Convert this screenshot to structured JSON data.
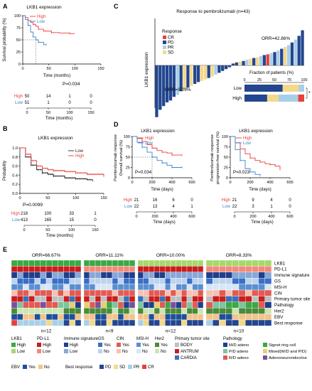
{
  "colors": {
    "high": "#e8403b",
    "low": "#3a86c8",
    "black": "#222222",
    "cr": "#e8403b",
    "pd": "#23468f",
    "pr": "#a9cfe8",
    "sd": "#f4d98a",
    "green_dark": "#3aa843",
    "green_light": "#a6d86a",
    "pdl1_high": "#c81e1e",
    "pdl1_low": "#f08a7a",
    "imm_high": "#1f3f8c",
    "imm_low": "#86a7d8",
    "yes_blue": "#3a6fc8",
    "no_blue": "#bcd3ef",
    "cin_yes": "#e25b53",
    "cin_no": "#f6c1b2",
    "msi_yes": "#5a8fcf",
    "msi_no": "#d8e6f5",
    "her2_yes": "#4a8a3a",
    "her2_no": "#c9e6b3",
    "ebv_yes": "#1e4f9a",
    "ebv_no": "#f3c38a",
    "body": "#bfbfbf",
    "antrum": "#c81e1e",
    "cardia": "#3d6fb6",
    "md": "#1f3f8c",
    "pd_adeno": "#7ec4a0",
    "rd": "#e25b53",
    "signet": "#3aa843",
    "mixed": "#e6d06e",
    "adenoneuro": "#7b4fa0"
  },
  "panels": {
    "A": {
      "letter": "A",
      "title": "LKB1 expression",
      "legend": [
        "High",
        "Low"
      ],
      "ylabel": "Survival probability (%)",
      "xlabel": "Time (months)",
      "xticks": [
        "0",
        "50",
        "100",
        "150"
      ],
      "yticks": [
        "0",
        "25",
        "50",
        "75",
        "100"
      ],
      "pvalue": "P=0.034",
      "risk_rows": [
        {
          "label": "High",
          "values": [
            "50",
            "14",
            "1",
            "0"
          ]
        },
        {
          "label": "Low",
          "values": [
            "51",
            "1",
            "0",
            "0"
          ]
        }
      ],
      "risk_xlabel": "Time (months)",
      "risk_xticks": [
        "0",
        "50",
        "100",
        "150"
      ]
    },
    "B": {
      "letter": "B",
      "title": "LKB1 expression",
      "legend": [
        "Low",
        "High"
      ],
      "ylabel": "Probability",
      "xlabel": "Time (months)",
      "xticks": [
        "0",
        "50",
        "100",
        "150"
      ],
      "yticks": [
        "0.0",
        "0.2",
        "0.4",
        "0.6",
        "0.8",
        "1.0"
      ],
      "pvalue": "P=0.0099",
      "risk_rows": [
        {
          "label": "High",
          "values": [
            "218",
            "100",
            "33",
            "1"
          ]
        },
        {
          "label": "Low",
          "values": [
            "413",
            "165",
            "15",
            "0"
          ]
        }
      ],
      "risk_xlabel": "Time (months)",
      "risk_xticks": [
        "0",
        "50",
        "100",
        "150"
      ]
    },
    "C": {
      "letter": "C",
      "title": "Response to pembrolizumab (n=43)",
      "ylabel": "LKB1 expression",
      "legend_title": "Response",
      "legend": [
        "CR",
        "PD",
        "PR",
        "SD"
      ],
      "orr_high": "ORR=42.86%",
      "orr_low": "ORR=9.09%",
      "fraction_title": "Fraction of patients (%)",
      "fraction_xticks": [
        "0",
        "25",
        "50",
        "75",
        "100"
      ],
      "fraction_rows": [
        "Low",
        "High"
      ],
      "star": "*"
    },
    "D": {
      "letter": "D",
      "left": {
        "title": "LKB1 expression",
        "legend": [
          "High",
          "Low"
        ],
        "ylabel1": "Pembrolizumab response",
        "ylabel2": "Overall survival (%)",
        "xlabel": "Time (days)",
        "xticks": [
          "0",
          "200",
          "400",
          "600"
        ],
        "yticks": [
          "0",
          "25",
          "50",
          "75",
          "100"
        ],
        "pvalue": "P=0.034",
        "risk_rows": [
          {
            "label": "High",
            "values": [
              "21",
              "16",
              "6",
              "0"
            ]
          },
          {
            "label": "Low",
            "values": [
              "22",
              "13",
              "4",
              "1"
            ]
          }
        ],
        "risk_xlabel": "Time (days)",
        "risk_xticks": [
          "0",
          "200",
          "400",
          "600"
        ]
      },
      "right": {
        "title": "LKB1 expression",
        "legend": [
          "High",
          "Low"
        ],
        "ylabel1": "Pembrolizumab response",
        "ylabel2": "progression-free survival (%)",
        "xlabel": "Time (days)",
        "xticks": [
          "0",
          "200",
          "400",
          "600"
        ],
        "yticks": [
          "0",
          "25",
          "50",
          "75",
          "100"
        ],
        "pvalue": "P=0.023",
        "risk_rows": [
          {
            "label": "High",
            "values": [
              "21",
              "9",
              "4",
              "0"
            ]
          },
          {
            "label": "Low",
            "values": [
              "22",
              "3",
              "1",
              "0"
            ]
          }
        ],
        "risk_xlabel": "Time (days)",
        "risk_xticks": [
          "0",
          "200",
          "400",
          "600"
        ]
      }
    },
    "E": {
      "letter": "E",
      "orr_labels": [
        "ORR=66.67%",
        "ORR=11.11%",
        "ORR=10.00%",
        "ORR=8.33%"
      ],
      "n_labels": [
        "n=12",
        "n=9",
        "n=12",
        "n=10"
      ],
      "row_labels": [
        "LKB1",
        "PD-L1",
        "Immune signature",
        "GS",
        "MSI-H",
        "CIN",
        "Primary tumor site",
        "Pathology",
        "Her2",
        "EBV",
        "Best response"
      ],
      "legend_groups": [
        {
          "title": "LKB1",
          "items": [
            {
              "label": "High",
              "color": "green_dark"
            },
            {
              "label": "Low",
              "color": "green_light"
            }
          ]
        },
        {
          "title": "PD-L1",
          "items": [
            {
              "label": "High",
              "color": "pdl1_high"
            },
            {
              "label": "Low",
              "color": "pdl1_low"
            }
          ]
        },
        {
          "title": "Immune signature",
          "items": [
            {
              "label": "High",
              "color": "imm_high"
            },
            {
              "label": "Low",
              "color": "imm_low"
            }
          ]
        },
        {
          "title": "GS",
          "items": [
            {
              "label": "Yes",
              "color": "yes_blue"
            },
            {
              "label": "No",
              "color": "no_blue"
            }
          ]
        },
        {
          "title": "CIN",
          "items": [
            {
              "label": "Yes",
              "color": "cin_yes"
            },
            {
              "label": "No",
              "color": "cin_no"
            }
          ]
        },
        {
          "title": "MSI-H",
          "items": [
            {
              "label": "Yes",
              "color": "msi_yes"
            },
            {
              "label": "No",
              "color": "msi_no"
            }
          ]
        },
        {
          "title": "Her2",
          "items": [
            {
              "label": "Yes",
              "color": "her2_yes"
            },
            {
              "label": "No",
              "color": "her2_no"
            }
          ]
        },
        {
          "title": "Primary tumor site",
          "items": [
            {
              "label": "BODY",
              "color": "body"
            },
            {
              "label": "ANTRUM",
              "color": "antrum"
            },
            {
              "label": "CARDIA",
              "color": "cardia"
            }
          ]
        }
      ],
      "pathology_title": "Pathology",
      "pathology_items": [
        {
          "label": "M/D adeno",
          "color": "md"
        },
        {
          "label": "Signet ring cell",
          "color": "signet"
        },
        {
          "label": "P/D adeno",
          "color": "pd_adeno"
        },
        {
          "label": "Mixed(W/D and P/D)",
          "color": "mixed"
        },
        {
          "label": "R/D adeno",
          "color": "rd"
        },
        {
          "label": "Adenoneurondocrine",
          "color": "adenoneuro"
        }
      ],
      "ebv_title": "EBV",
      "ebv_items": [
        {
          "label": "Yes",
          "color": "ebv_yes"
        },
        {
          "label": "No",
          "color": "ebv_no"
        }
      ],
      "best_title": "Best response",
      "best_items": [
        {
          "label": "PD",
          "color": "pd"
        },
        {
          "label": "SD",
          "color": "sd"
        },
        {
          "label": "PR",
          "color": "pr"
        },
        {
          "label": "CR",
          "color": "cr"
        }
      ]
    }
  },
  "chart_data": [
    {
      "type": "line",
      "title": "LKB1 expression",
      "xlabel": "Time (months)",
      "ylabel": "Survival probability (%)",
      "xlim": [
        0,
        150
      ],
      "ylim": [
        0,
        100
      ],
      "series": [
        {
          "name": "High",
          "x": [
            0,
            5,
            10,
            15,
            20,
            25,
            30,
            40,
            55,
            70,
            90,
            100
          ],
          "y": [
            100,
            96,
            90,
            86,
            82,
            78,
            72,
            68,
            65,
            64,
            63,
            63
          ]
        },
        {
          "name": "Low",
          "x": [
            0,
            5,
            10,
            15,
            20,
            25,
            30,
            40,
            45
          ],
          "y": [
            100,
            92,
            80,
            66,
            56,
            50,
            45,
            40,
            40
          ]
        }
      ]
    },
    {
      "type": "line",
      "title": "LKB1 expression",
      "xlabel": "Time (months)",
      "ylabel": "Probability",
      "xlim": [
        0,
        150
      ],
      "ylim": [
        0,
        1
      ],
      "series": [
        {
          "name": "Low",
          "x": [
            0,
            10,
            20,
            30,
            40,
            50,
            60,
            80,
            100,
            120,
            130
          ],
          "y": [
            1,
            0.8,
            0.62,
            0.52,
            0.45,
            0.42,
            0.38,
            0.34,
            0.32,
            0.3,
            0.28
          ]
        },
        {
          "name": "High",
          "x": [
            0,
            10,
            20,
            30,
            40,
            50,
            60,
            80,
            100,
            120,
            150
          ],
          "y": [
            1,
            0.86,
            0.72,
            0.6,
            0.55,
            0.52,
            0.5,
            0.48,
            0.45,
            0.42,
            0.38
          ]
        }
      ]
    },
    {
      "type": "bar",
      "title": "Response to pembrolizumab (n=43)",
      "ylabel": "LKB1 expression",
      "values": [
        -1.4,
        -1.2,
        -1.1,
        -1.0,
        -0.95,
        -0.85,
        -0.8,
        -0.7,
        -0.65,
        -0.6,
        -0.55,
        -0.5,
        -0.45,
        -0.42,
        -0.38,
        -0.34,
        -0.3,
        -0.25,
        -0.2,
        -0.15,
        -0.1,
        -0.05,
        0.05,
        0.08,
        0.1,
        0.12,
        0.15,
        0.18,
        0.2,
        0.22,
        0.25,
        0.28,
        0.3,
        0.33,
        0.36,
        0.4,
        0.45,
        0.5,
        0.55,
        0.62,
        0.7,
        0.8,
        0.95
      ],
      "responses": [
        "PD",
        "PD",
        "PD",
        "PD",
        "PD",
        "PD",
        "PR",
        "PD",
        "SD",
        "PD",
        "SD",
        "PD",
        "PD",
        "SD",
        "SD",
        "PD",
        "SD",
        "PR",
        "PD",
        "PD",
        "PD",
        "PD",
        "PD",
        "PD",
        "SD",
        "PD",
        "PR",
        "SD",
        "PD",
        "SD",
        "PR",
        "PD",
        "CR",
        "PR",
        "PD",
        "PR",
        "PD",
        "SD",
        "PR",
        "PD",
        "PR",
        "PD",
        "PD"
      ]
    },
    {
      "type": "bar",
      "title": "Fraction of patients (%)",
      "categories": [
        "Low",
        "High"
      ],
      "series": [
        {
          "name": "PD",
          "values": [
            64,
            38
          ]
        },
        {
          "name": "SD",
          "values": [
            27,
            19
          ]
        },
        {
          "name": "PR",
          "values": [
            9,
            33
          ]
        },
        {
          "name": "CR",
          "values": [
            0,
            10
          ]
        }
      ]
    },
    {
      "type": "line",
      "xlabel": "Time (days)",
      "ylabel": "Overall survival (%)",
      "xlim": [
        0,
        600
      ],
      "ylim": [
        0,
        100
      ],
      "series": [
        {
          "name": "High",
          "x": [
            0,
            50,
            100,
            150,
            200,
            250,
            300,
            350,
            400,
            450,
            500
          ],
          "y": [
            100,
            95,
            88,
            80,
            72,
            66,
            62,
            60,
            55,
            55,
            55
          ]
        },
        {
          "name": "Low",
          "x": [
            0,
            50,
            100,
            150,
            200,
            250,
            300,
            350,
            400,
            450,
            500
          ],
          "y": [
            100,
            86,
            74,
            62,
            50,
            42,
            36,
            30,
            25,
            25,
            25
          ]
        }
      ]
    },
    {
      "type": "line",
      "xlabel": "Time (days)",
      "ylabel": "progression-free survival (%)",
      "xlim": [
        0,
        600
      ],
      "ylim": [
        0,
        100
      ],
      "series": [
        {
          "name": "High",
          "x": [
            0,
            50,
            100,
            150,
            200,
            250,
            300,
            350,
            400,
            450,
            500
          ],
          "y": [
            100,
            85,
            70,
            58,
            48,
            42,
            38,
            34,
            32,
            28,
            20
          ]
        },
        {
          "name": "Low",
          "x": [
            0,
            50,
            100,
            150,
            200,
            250,
            300
          ],
          "y": [
            100,
            68,
            42,
            22,
            14,
            8,
            5
          ]
        }
      ]
    }
  ]
}
